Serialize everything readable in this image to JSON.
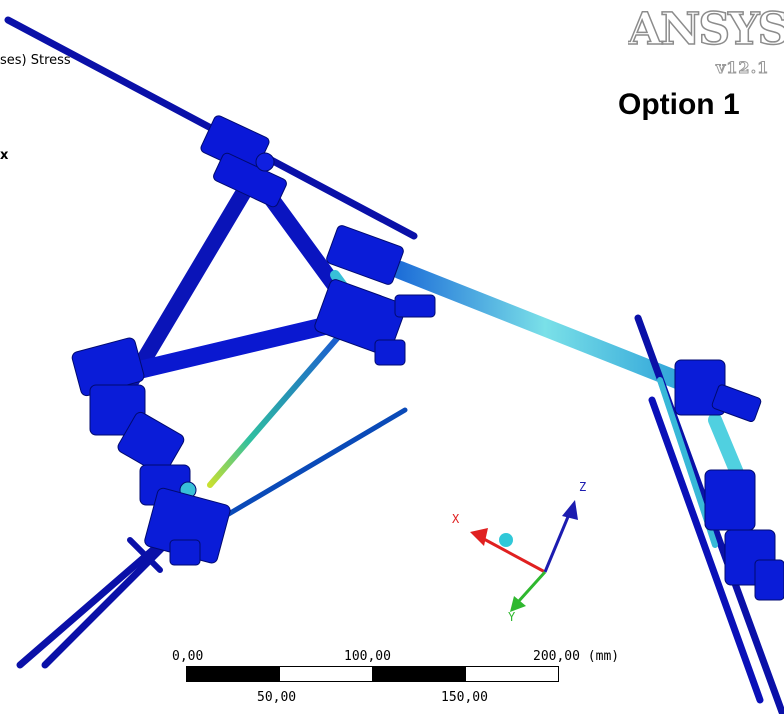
{
  "viewport": {
    "result_label": "ses) Stress",
    "max_marker": "x",
    "title": "Option 1"
  },
  "logo": {
    "brand": "ANSYS",
    "version": "v12.1"
  },
  "triad": {
    "x_label": "X",
    "y_label": "Y",
    "z_label": "Z",
    "x_color": "#e02020",
    "y_color": "#2fb82f",
    "z_color": "#1c1cb0",
    "origin_color": "#30c8d8"
  },
  "scale_bar": {
    "top_ticks": [
      "0,00",
      "100,00",
      "200,00 (mm)"
    ],
    "bottom_ticks": [
      "50,00",
      "150,00"
    ]
  },
  "colors": {
    "low_stress": "#0a14c8",
    "mid_stress": "#3cc8d8",
    "high_stress": "#c8d820"
  }
}
